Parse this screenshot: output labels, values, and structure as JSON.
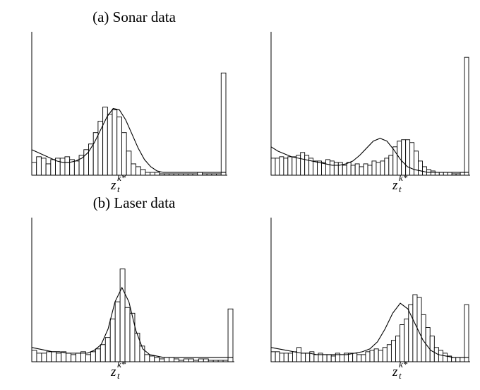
{
  "sections": [
    {
      "title": "(a) Sonar data"
    },
    {
      "title": "(b) Laser data"
    }
  ],
  "chart_data": [
    {
      "type": "bar",
      "section": "(a) Sonar data",
      "x_tick": "z_t^{k*}",
      "x_tick_parts": {
        "main": "z",
        "sub": "t",
        "sup": "k*"
      },
      "ylim": [
        0,
        1
      ],
      "values": [
        0.09,
        0.13,
        0.12,
        0.08,
        0.11,
        0.12,
        0.12,
        0.13,
        0.11,
        0.1,
        0.14,
        0.18,
        0.22,
        0.3,
        0.38,
        0.48,
        0.43,
        0.46,
        0.41,
        0.3,
        0.17,
        0.08,
        0.06,
        0.04,
        0.02,
        0.02,
        0.02,
        0.01,
        0.01,
        0.01,
        0.01,
        0.01,
        0.01,
        0.01,
        0.01,
        0.02,
        0.01,
        0.01,
        0.01,
        0.01,
        0.72
      ],
      "curve": [
        0.18,
        0.16,
        0.14,
        0.12,
        0.1,
        0.09,
        0.09,
        0.1,
        0.12,
        0.16,
        0.23,
        0.32,
        0.41,
        0.47,
        0.46,
        0.39,
        0.29,
        0.19,
        0.11,
        0.06,
        0.03,
        0.02,
        0.02,
        0.02,
        0.02,
        0.02,
        0.02,
        0.02,
        0.02,
        0.02,
        0.02,
        0.02
      ]
    },
    {
      "type": "bar",
      "section": "(a) Sonar data",
      "x_tick": "z_t^{k*}",
      "x_tick_parts": {
        "main": "z",
        "sub": "t",
        "sup": "k*"
      },
      "ylim": [
        0,
        1
      ],
      "values": [
        0.12,
        0.12,
        0.13,
        0.12,
        0.13,
        0.13,
        0.14,
        0.16,
        0.14,
        0.12,
        0.1,
        0.1,
        0.09,
        0.11,
        0.1,
        0.09,
        0.09,
        0.07,
        0.09,
        0.07,
        0.08,
        0.06,
        0.08,
        0.07,
        0.1,
        0.09,
        0.1,
        0.12,
        0.14,
        0.2,
        0.24,
        0.25,
        0.25,
        0.23,
        0.17,
        0.1,
        0.06,
        0.04,
        0.03,
        0.02,
        0.02,
        0.02,
        0.02,
        0.01,
        0.01,
        0.02,
        0.83
      ],
      "curve": [
        0.2,
        0.17,
        0.15,
        0.13,
        0.12,
        0.11,
        0.1,
        0.09,
        0.08,
        0.07,
        0.07,
        0.08,
        0.1,
        0.14,
        0.19,
        0.24,
        0.26,
        0.24,
        0.18,
        0.11,
        0.06,
        0.04,
        0.03,
        0.02,
        0.02,
        0.02,
        0.02,
        0.02,
        0.02,
        0.02
      ]
    },
    {
      "type": "bar",
      "section": "(b) Laser data",
      "x_tick": "z_t^{k*}",
      "x_tick_parts": {
        "main": "z",
        "sub": "t",
        "sup": "k*"
      },
      "ylim": [
        0,
        1
      ],
      "values": [
        0.08,
        0.06,
        0.06,
        0.07,
        0.07,
        0.06,
        0.07,
        0.06,
        0.05,
        0.06,
        0.07,
        0.05,
        0.07,
        0.09,
        0.12,
        0.17,
        0.3,
        0.42,
        0.65,
        0.38,
        0.34,
        0.2,
        0.11,
        0.05,
        0.04,
        0.03,
        0.02,
        0.03,
        0.03,
        0.02,
        0.01,
        0.02,
        0.02,
        0.01,
        0.02,
        0.02,
        0.01,
        0.01,
        0.01,
        0.01,
        0.37
      ],
      "curve": [
        0.1,
        0.09,
        0.08,
        0.07,
        0.07,
        0.06,
        0.06,
        0.06,
        0.06,
        0.08,
        0.12,
        0.23,
        0.42,
        0.52,
        0.42,
        0.22,
        0.09,
        0.05,
        0.04,
        0.03,
        0.03,
        0.03,
        0.03,
        0.03,
        0.03,
        0.03,
        0.03,
        0.03,
        0.03,
        0.03
      ]
    },
    {
      "type": "bar",
      "section": "(b) Laser data",
      "x_tick": "z_t^{k*}",
      "x_tick_parts": {
        "main": "z",
        "sub": "t",
        "sup": "k*"
      },
      "ylim": [
        0,
        1
      ],
      "values": [
        0.07,
        0.07,
        0.06,
        0.06,
        0.06,
        0.07,
        0.1,
        0.06,
        0.06,
        0.07,
        0.05,
        0.06,
        0.05,
        0.05,
        0.04,
        0.06,
        0.05,
        0.06,
        0.06,
        0.06,
        0.05,
        0.05,
        0.07,
        0.08,
        0.09,
        0.08,
        0.1,
        0.12,
        0.15,
        0.18,
        0.26,
        0.3,
        0.4,
        0.47,
        0.45,
        0.33,
        0.24,
        0.18,
        0.1,
        0.08,
        0.06,
        0.04,
        0.03,
        0.03,
        0.03,
        0.4
      ],
      "curve": [
        0.1,
        0.09,
        0.08,
        0.07,
        0.06,
        0.06,
        0.05,
        0.05,
        0.05,
        0.05,
        0.05,
        0.06,
        0.07,
        0.09,
        0.14,
        0.23,
        0.34,
        0.41,
        0.37,
        0.26,
        0.15,
        0.08,
        0.05,
        0.04,
        0.03,
        0.03,
        0.03
      ]
    }
  ]
}
